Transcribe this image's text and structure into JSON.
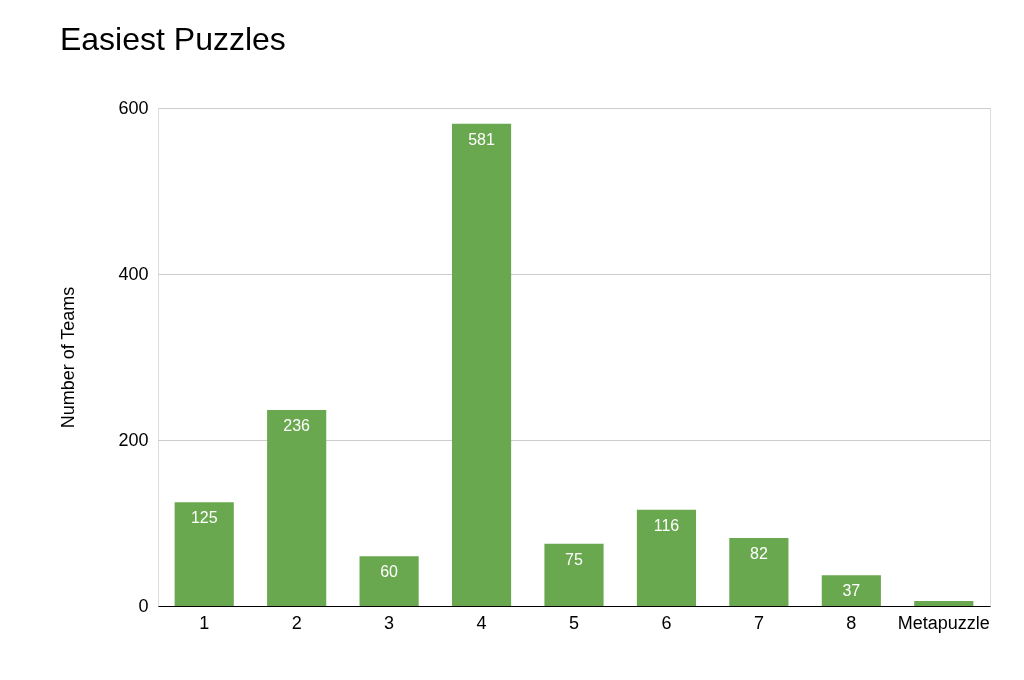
{
  "chart_data": {
    "type": "bar",
    "title": "Easiest Puzzles",
    "ylabel": "Number of Teams",
    "categories": [
      "1",
      "2",
      "3",
      "4",
      "5",
      "6",
      "7",
      "8",
      "Metapuzzle"
    ],
    "values": [
      125,
      236,
      60,
      581,
      75,
      116,
      82,
      37,
      6
    ],
    "value_labels": [
      "125",
      "236",
      "60",
      "581",
      "75",
      "116",
      "82",
      "37",
      null
    ],
    "color": "#6aa84f",
    "ylim": [
      0,
      600
    ],
    "yticks": [
      0,
      200,
      400,
      600
    ],
    "grid": "y"
  }
}
